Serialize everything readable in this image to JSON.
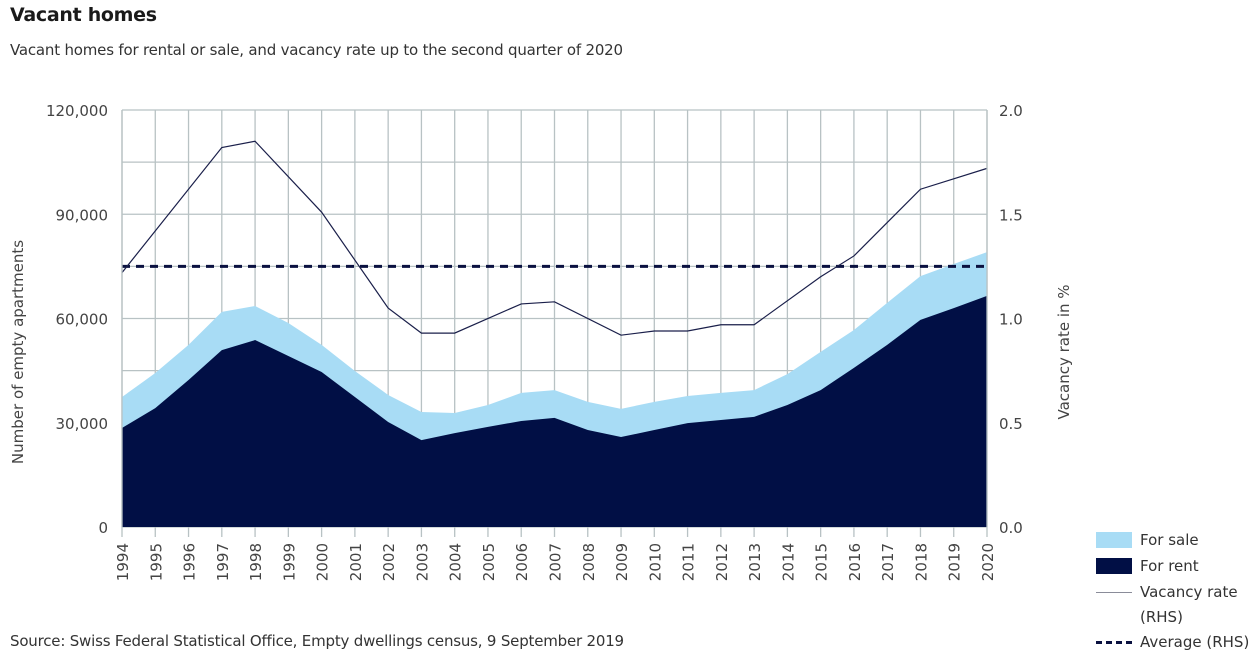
{
  "header": {
    "title": "Vacant homes",
    "subtitle": "Vacant homes for rental or sale, and vacancy rate up to the second quarter of 2020"
  },
  "footer": {
    "source": "Source: Swiss Federal Statistical Office, Empty dwellings census, 9 September 2019"
  },
  "colors": {
    "for_sale": "#a8dcf5",
    "for_rent": "#010f45",
    "vacancy_line": "#1a1f4a",
    "average_line": "#0a1140",
    "grid": "#b8c2c4"
  },
  "legend": {
    "for_sale": "For sale",
    "for_rent": "For rent",
    "vacancy_rate_line1": "Vacancy rate",
    "vacancy_rate_line2": "(RHS)",
    "average": "Average (RHS)"
  },
  "chart_data": {
    "type": "area",
    "title": "Vacant homes",
    "subtitle": "Vacant homes for rental or sale, and vacancy rate up to the second quarter of 2020",
    "x": [
      1994,
      1995,
      1996,
      1997,
      1998,
      1999,
      2000,
      2001,
      2002,
      2003,
      2004,
      2005,
      2006,
      2007,
      2008,
      2009,
      2010,
      2011,
      2012,
      2013,
      2014,
      2015,
      2016,
      2017,
      2018,
      2019,
      2020
    ],
    "xlabel": "",
    "ylabel": "Number of empty apartments",
    "y2label": "Vacancy rate in %",
    "ylim": [
      0,
      120000
    ],
    "y2lim": [
      0,
      2.0
    ],
    "yticks": [
      "0",
      "30,000",
      "60,000",
      "90,000",
      "120,000"
    ],
    "ytick_values": [
      0,
      30000,
      60000,
      90000,
      120000
    ],
    "y2ticks": [
      "0.0",
      "0.5",
      "1.0",
      "1.5",
      "2.0"
    ],
    "y2tick_values": [
      0,
      0.5,
      1.0,
      1.5,
      2.0
    ],
    "grid": true,
    "legend_position": "bottom-right",
    "series": [
      {
        "name": "For rent",
        "type": "stacked-area",
        "axis": "left",
        "values": [
          28500,
          34200,
          42300,
          50900,
          53800,
          49200,
          44600,
          37400,
          30200,
          25000,
          27000,
          28800,
          30500,
          31400,
          27900,
          25900,
          27900,
          29900,
          30800,
          31700,
          35100,
          39400,
          45800,
          52400,
          59600,
          63000,
          66500
        ]
      },
      {
        "name": "For sale",
        "type": "stacked-area",
        "axis": "left",
        "values": [
          8900,
          10100,
          10100,
          11000,
          9800,
          9500,
          7800,
          7500,
          7800,
          8100,
          5800,
          6300,
          8100,
          8000,
          8100,
          8100,
          8100,
          7800,
          7800,
          7700,
          8900,
          11000,
          10900,
          12100,
          12600,
          12700,
          12600
        ]
      },
      {
        "name": "Vacancy rate (RHS)",
        "type": "line",
        "axis": "right",
        "x": [
          1994,
          1997,
          1998,
          2000,
          2002,
          2003,
          2004,
          2006,
          2007,
          2009,
          2010,
          2011,
          2012,
          2013,
          2015,
          2016,
          2017,
          2018,
          2019,
          2020
        ],
        "values": [
          1.22,
          1.82,
          1.85,
          1.51,
          1.05,
          0.93,
          0.93,
          1.07,
          1.08,
          0.92,
          0.94,
          0.94,
          0.97,
          0.97,
          1.2,
          1.3,
          1.46,
          1.62,
          1.67,
          1.72
        ]
      },
      {
        "name": "Average (RHS)",
        "type": "dashed-line",
        "axis": "right",
        "value": 1.25
      }
    ]
  }
}
